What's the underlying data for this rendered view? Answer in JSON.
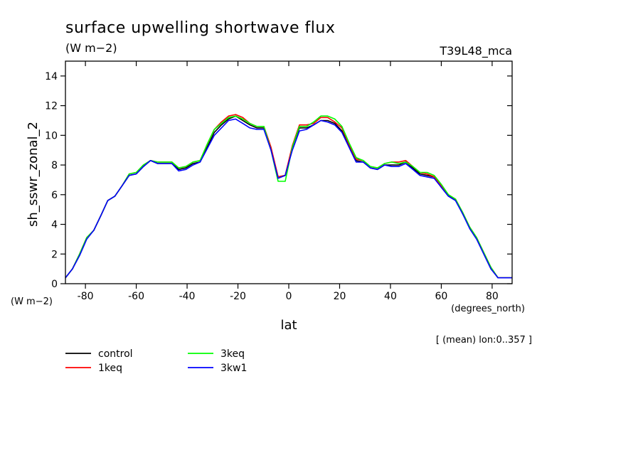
{
  "chart_data": {
    "type": "line",
    "title": "surface upwelling shortwave flux",
    "subtitle": "(W m−2)",
    "model_label": "T39L48_mca",
    "ylabel": "sh_sswr_zonal_2",
    "y_unit": "(W m−2)",
    "xlabel": "lat",
    "x_unit": "(degrees_north)",
    "footnote": "[ (mean) lon:0..357 ]",
    "xlim": [
      -87.86,
      87.86
    ],
    "ylim": [
      0,
      15
    ],
    "x_ticks": [
      "-80",
      "-60",
      "-40",
      "-20",
      "0",
      "20",
      "40",
      "60",
      "80"
    ],
    "y_ticks": [
      "0",
      "2",
      "4",
      "6",
      "8",
      "10",
      "12",
      "14"
    ],
    "grid": false,
    "legend_position": "bottom-left",
    "x": [
      -87.86,
      -85.1,
      -82.3,
      -79.5,
      -76.7,
      -73.9,
      -71.2,
      -68.4,
      -65.6,
      -62.8,
      -60.0,
      -57.2,
      -54.4,
      -51.6,
      -48.8,
      -46.0,
      -43.3,
      -40.5,
      -37.7,
      -34.9,
      -32.1,
      -29.3,
      -26.5,
      -23.7,
      -20.9,
      -18.1,
      -15.3,
      -12.6,
      -9.8,
      -7.0,
      -4.2,
      -1.4,
      1.4,
      4.2,
      7.0,
      9.8,
      12.6,
      15.3,
      18.1,
      20.9,
      23.7,
      26.5,
      29.3,
      32.1,
      34.9,
      37.7,
      40.5,
      43.3,
      46.0,
      48.8,
      51.6,
      54.4,
      57.2,
      60.0,
      62.8,
      65.6,
      68.4,
      71.2,
      73.9,
      76.7,
      79.5,
      82.3,
      85.1,
      87.86
    ],
    "series": [
      {
        "name": "control",
        "color": "#000000",
        "values": [
          0.4,
          1.0,
          2.0,
          3.1,
          3.6,
          4.6,
          5.6,
          5.9,
          6.6,
          7.3,
          7.4,
          7.9,
          8.3,
          8.1,
          8.1,
          8.1,
          7.7,
          7.8,
          8.1,
          8.2,
          9.2,
          10.2,
          10.7,
          11.1,
          11.3,
          11.0,
          10.7,
          10.5,
          10.5,
          9.1,
          7.2,
          7.3,
          9.2,
          10.5,
          10.5,
          10.7,
          11.0,
          11.0,
          10.8,
          10.3,
          9.3,
          8.3,
          8.2,
          7.8,
          7.7,
          8.0,
          8.0,
          8.0,
          8.2,
          7.8,
          7.4,
          7.3,
          7.2,
          6.5,
          5.9,
          5.7,
          4.7,
          3.8,
          3.1,
          2.1,
          1.1,
          0.4,
          0.4,
          0.4
        ]
      },
      {
        "name": "1keq",
        "color": "#ff0000",
        "values": [
          0.4,
          1.0,
          2.0,
          3.1,
          3.6,
          4.6,
          5.6,
          5.9,
          6.6,
          7.4,
          7.5,
          8.0,
          8.3,
          8.2,
          8.2,
          8.2,
          7.8,
          7.9,
          8.2,
          8.3,
          9.4,
          10.4,
          10.9,
          11.3,
          11.4,
          11.2,
          10.8,
          10.6,
          10.6,
          9.2,
          7.2,
          7.3,
          9.3,
          10.7,
          10.7,
          10.8,
          11.2,
          11.2,
          10.9,
          10.5,
          9.4,
          8.4,
          8.3,
          7.9,
          7.8,
          8.1,
          8.2,
          8.2,
          8.3,
          7.9,
          7.5,
          7.4,
          7.2,
          6.6,
          6.0,
          5.7,
          4.8,
          3.8,
          3.1,
          2.1,
          1.1,
          0.4,
          0.4,
          0.4
        ]
      },
      {
        "name": "3keq",
        "color": "#00ff00",
        "values": [
          0.4,
          1.0,
          2.0,
          3.1,
          3.6,
          4.6,
          5.6,
          5.9,
          6.6,
          7.4,
          7.5,
          8.0,
          8.3,
          8.2,
          8.2,
          8.2,
          7.8,
          7.9,
          8.2,
          8.3,
          9.4,
          10.4,
          10.8,
          11.2,
          11.3,
          11.1,
          10.8,
          10.6,
          10.6,
          9.0,
          6.9,
          6.9,
          9.2,
          10.6,
          10.6,
          10.9,
          11.3,
          11.3,
          11.1,
          10.6,
          9.5,
          8.5,
          8.3,
          7.9,
          7.8,
          8.1,
          8.2,
          8.1,
          8.2,
          7.9,
          7.5,
          7.5,
          7.3,
          6.7,
          6.0,
          5.7,
          4.8,
          3.8,
          3.1,
          2.1,
          1.1,
          0.4,
          0.4,
          0.4
        ]
      },
      {
        "name": "3kw1",
        "color": "#0000ff",
        "values": [
          0.4,
          1.0,
          1.9,
          3.0,
          3.6,
          4.6,
          5.6,
          5.9,
          6.6,
          7.3,
          7.4,
          7.9,
          8.3,
          8.1,
          8.1,
          8.1,
          7.6,
          7.7,
          8.0,
          8.2,
          9.1,
          10.0,
          10.5,
          11.0,
          11.1,
          10.8,
          10.5,
          10.4,
          10.4,
          9.0,
          7.1,
          7.3,
          9.0,
          10.3,
          10.4,
          10.7,
          11.0,
          10.9,
          10.7,
          10.2,
          9.2,
          8.2,
          8.2,
          7.8,
          7.7,
          8.0,
          7.9,
          7.9,
          8.1,
          7.7,
          7.3,
          7.2,
          7.1,
          6.5,
          5.9,
          5.6,
          4.7,
          3.7,
          3.0,
          2.0,
          1.0,
          0.4,
          0.4,
          0.4
        ]
      }
    ]
  }
}
